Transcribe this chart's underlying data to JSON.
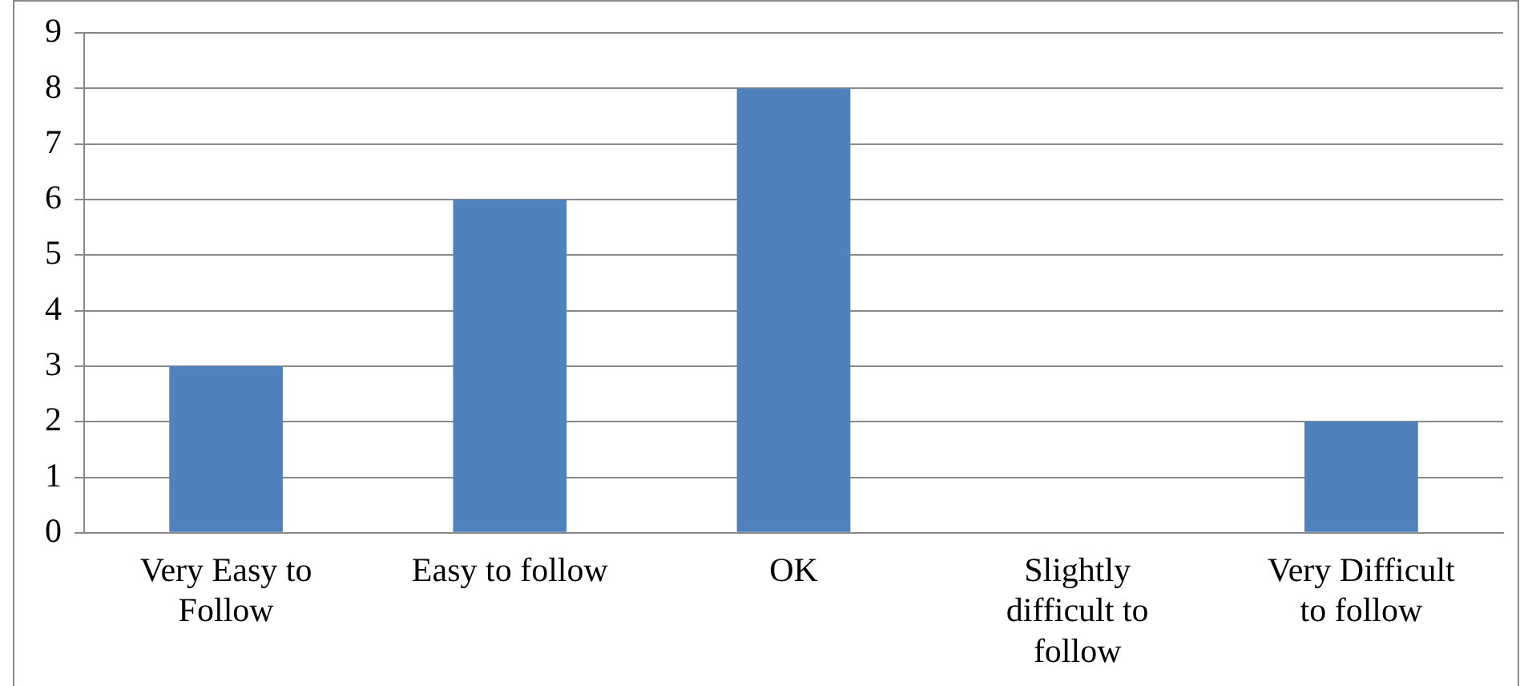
{
  "chart_data": {
    "type": "bar",
    "categories": [
      "Very Easy to Follow",
      "Easy to follow",
      "OK",
      "Slightly difficult to follow",
      "Very Difficult to follow"
    ],
    "values": [
      3,
      6,
      8,
      0,
      2
    ],
    "color": "#4f81bd",
    "ylim": [
      0,
      9
    ],
    "yticks": [
      0,
      1,
      2,
      3,
      4,
      5,
      6,
      7,
      8,
      9
    ],
    "grid": "y",
    "legend": false
  }
}
